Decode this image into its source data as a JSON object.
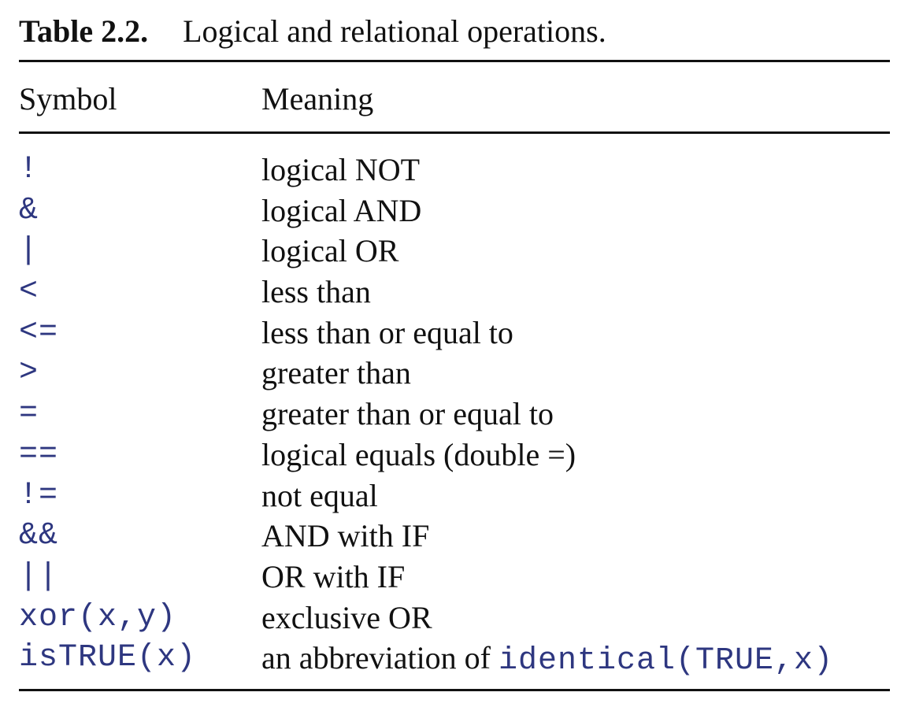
{
  "caption": {
    "label": "Table 2.2.",
    "text": "Logical and relational operations."
  },
  "table": {
    "headers": {
      "symbol": "Symbol",
      "meaning": "Meaning"
    },
    "rows": [
      {
        "symbol": "!",
        "meaning": "logical NOT"
      },
      {
        "symbol": "&",
        "meaning": "logical AND"
      },
      {
        "symbol": "|",
        "meaning": "logical OR"
      },
      {
        "symbol": "<",
        "meaning": "less than"
      },
      {
        "symbol": "<=",
        "meaning": "less than or equal to"
      },
      {
        "symbol": ">",
        "meaning": "greater than"
      },
      {
        "symbol": "=",
        "meaning": "greater than or equal to"
      },
      {
        "symbol": "==",
        "meaning": "logical equals (double =)"
      },
      {
        "symbol": "!=",
        "meaning": "not equal"
      },
      {
        "symbol": "&&",
        "meaning": "AND with IF"
      },
      {
        "symbol": "||",
        "meaning": "OR with IF"
      },
      {
        "symbol": "xor(x,y)",
        "meaning": "exclusive OR"
      },
      {
        "symbol": "isTRUE(x)",
        "meaning": "an abbreviation of ",
        "meaning_code": "identical(TRUE,x)"
      }
    ]
  },
  "colors": {
    "code": "#2e3780",
    "text": "#111111",
    "rule": "#111111"
  }
}
